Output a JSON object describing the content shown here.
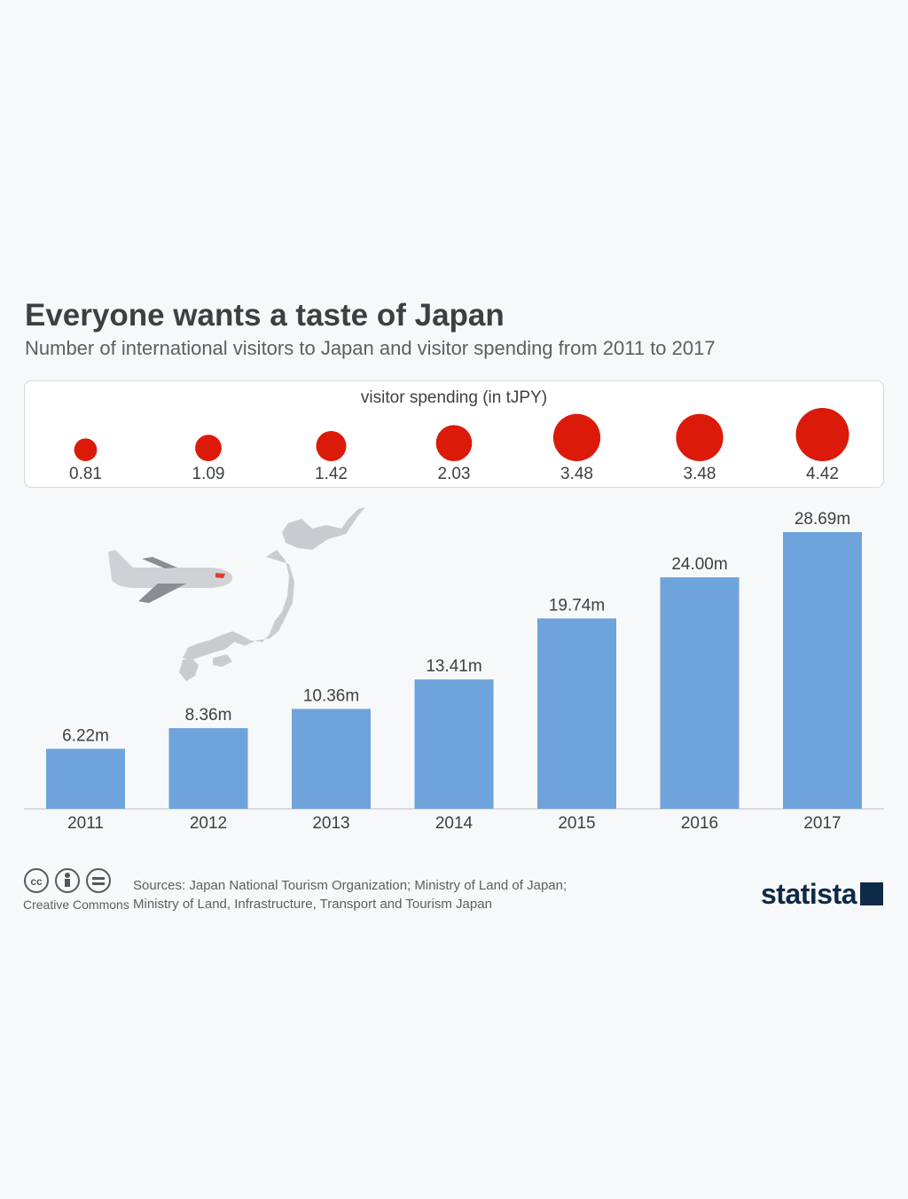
{
  "header": {
    "title": "Everyone wants a taste of Japan",
    "subtitle": "Number of international visitors to Japan and visitor spending from 2011 to 2017"
  },
  "spending_panel": {
    "title": "visitor spending (in tJPY)"
  },
  "footer": {
    "sources_line1": "Sources: Japan National Tourism Organization; Ministry of Land of Japan;",
    "sources_line2": "Ministry of Land, Infrastructure, Transport and Tourism Japan",
    "license_label": "Creative Commons",
    "logo": "statista"
  },
  "colors": {
    "bar": "#6fa3dc",
    "bubble": "#dc1a0a",
    "map": "#c9cbce"
  },
  "chart_data": [
    {
      "type": "bar",
      "categories": [
        "2011",
        "2012",
        "2013",
        "2014",
        "2015",
        "2016",
        "2017"
      ],
      "values": [
        6.22,
        8.36,
        10.36,
        13.41,
        19.74,
        24.0,
        28.69
      ],
      "value_labels": [
        "6.22m",
        "8.36m",
        "10.36m",
        "13.41m",
        "19.74m",
        "24.00m",
        "28.69m"
      ],
      "ylabel": "",
      "ylim": [
        0,
        28.69
      ],
      "grid": false
    },
    {
      "type": "scatter",
      "categories": [
        "2011",
        "2012",
        "2013",
        "2014",
        "2015",
        "2016",
        "2017"
      ],
      "values": [
        0.81,
        1.09,
        1.42,
        2.03,
        3.48,
        3.48,
        4.42
      ],
      "value_labels": [
        "0.81",
        "1.09",
        "1.42",
        "2.03",
        "3.48",
        "3.48",
        "4.42"
      ]
    }
  ]
}
